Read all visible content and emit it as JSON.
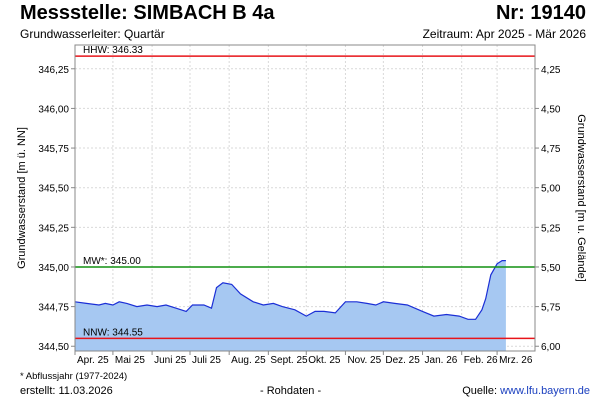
{
  "header": {
    "title": "Messstelle: SIMBACH B 4a",
    "number": "Nr: 19140",
    "aquifer": "Grundwasserleiter: Quartär",
    "period": "Zeitraum: Apr 2025 - Mär 2026"
  },
  "footer": {
    "footnote": "* Abflussjahr (1977-2024)",
    "created": "erstellt:  11.03.2026",
    "raw": "- Rohdaten -",
    "source_prefix": "Quelle: ",
    "source_link": "www.lfu.bayern.de"
  },
  "colors": {
    "fill": "#a6c8f2",
    "line": "#1b2fd6",
    "hhw": "#e8141a",
    "nnw": "#e8141a",
    "mw": "#119111",
    "grid": "#d9d9d9"
  },
  "chart_data": {
    "type": "area",
    "ylabel_left": "Grundwasserstand [m ü. NN]",
    "ylabel_right": "Grundwasserstand [m u. Gelände]",
    "ylim": [
      344.47,
      346.4
    ],
    "grid": true,
    "left_ticks": [
      {
        "value": 344.5,
        "label": "344,50"
      },
      {
        "value": 344.75,
        "label": "344,75"
      },
      {
        "value": 345.0,
        "label": "345,00"
      },
      {
        "value": 345.25,
        "label": "345,25"
      },
      {
        "value": 345.5,
        "label": "345,50"
      },
      {
        "value": 345.75,
        "label": "345,75"
      },
      {
        "value": 346.0,
        "label": "346,00"
      },
      {
        "value": 346.25,
        "label": "346,25"
      }
    ],
    "right_ticks": [
      {
        "value": 346.25,
        "label": "4,25"
      },
      {
        "value": 346.0,
        "label": "4,50"
      },
      {
        "value": 345.75,
        "label": "4,75"
      },
      {
        "value": 345.5,
        "label": "5,00"
      },
      {
        "value": 345.25,
        "label": "5,25"
      },
      {
        "value": 345.0,
        "label": "5,50"
      },
      {
        "value": 344.75,
        "label": "5,75"
      },
      {
        "value": 344.5,
        "label": "6,00"
      }
    ],
    "x_start": "2025-04-01",
    "x_end": "2026-03-31",
    "x_ticks": [
      {
        "date": "2025-04-01",
        "label": "Apr. 25"
      },
      {
        "date": "2025-05-01",
        "label": "Mai 25"
      },
      {
        "date": "2025-06-01",
        "label": "Juni 25"
      },
      {
        "date": "2025-07-01",
        "label": "Juli 25"
      },
      {
        "date": "2025-08-01",
        "label": "Aug. 25"
      },
      {
        "date": "2025-09-01",
        "label": "Sept. 25"
      },
      {
        "date": "2025-10-01",
        "label": "Okt. 25"
      },
      {
        "date": "2025-11-01",
        "label": "Nov. 25"
      },
      {
        "date": "2025-12-01",
        "label": "Dez. 25"
      },
      {
        "date": "2026-01-01",
        "label": "Jan. 26"
      },
      {
        "date": "2026-02-01",
        "label": "Feb. 26"
      },
      {
        "date": "2026-03-01",
        "label": "Mrz. 26"
      }
    ],
    "reference_lines": [
      {
        "name": "HHW",
        "label": "HHW: 346.33",
        "value": 346.33
      },
      {
        "name": "MW",
        "label": "MW*: 345.00",
        "value": 345.0
      },
      {
        "name": "NNW",
        "label": "NNW: 344.55",
        "value": 344.55
      }
    ],
    "series": [
      {
        "points": [
          [
            "2025-04-01",
            344.78
          ],
          [
            "2025-04-10",
            344.77
          ],
          [
            "2025-04-20",
            344.76
          ],
          [
            "2025-04-25",
            344.77
          ],
          [
            "2025-05-01",
            344.76
          ],
          [
            "2025-05-06",
            344.78
          ],
          [
            "2025-05-12",
            344.77
          ],
          [
            "2025-05-20",
            344.75
          ],
          [
            "2025-05-28",
            344.76
          ],
          [
            "2025-06-05",
            344.75
          ],
          [
            "2025-06-12",
            344.76
          ],
          [
            "2025-06-20",
            344.74
          ],
          [
            "2025-06-28",
            344.72
          ],
          [
            "2025-07-03",
            344.76
          ],
          [
            "2025-07-12",
            344.76
          ],
          [
            "2025-07-18",
            344.74
          ],
          [
            "2025-07-22",
            344.87
          ],
          [
            "2025-07-27",
            344.9
          ],
          [
            "2025-08-03",
            344.89
          ],
          [
            "2025-08-10",
            344.83
          ],
          [
            "2025-08-20",
            344.78
          ],
          [
            "2025-08-28",
            344.76
          ],
          [
            "2025-09-05",
            344.77
          ],
          [
            "2025-09-12",
            344.75
          ],
          [
            "2025-09-22",
            344.73
          ],
          [
            "2025-10-01",
            344.69
          ],
          [
            "2025-10-08",
            344.72
          ],
          [
            "2025-10-15",
            344.72
          ],
          [
            "2025-10-24",
            344.71
          ],
          [
            "2025-11-01",
            344.78
          ],
          [
            "2025-11-10",
            344.78
          ],
          [
            "2025-11-18",
            344.77
          ],
          [
            "2025-11-25",
            344.76
          ],
          [
            "2025-12-01",
            344.78
          ],
          [
            "2025-12-10",
            344.77
          ],
          [
            "2025-12-20",
            344.76
          ],
          [
            "2026-01-01",
            344.72
          ],
          [
            "2026-01-10",
            344.69
          ],
          [
            "2026-01-20",
            344.7
          ],
          [
            "2026-01-30",
            344.69
          ],
          [
            "2026-02-06",
            344.67
          ],
          [
            "2026-02-12",
            344.67
          ],
          [
            "2026-02-17",
            344.73
          ],
          [
            "2026-02-20",
            344.8
          ],
          [
            "2026-02-24",
            344.95
          ],
          [
            "2026-03-01",
            345.02
          ],
          [
            "2026-03-05",
            345.04
          ],
          [
            "2026-03-08",
            345.04
          ]
        ]
      }
    ]
  }
}
